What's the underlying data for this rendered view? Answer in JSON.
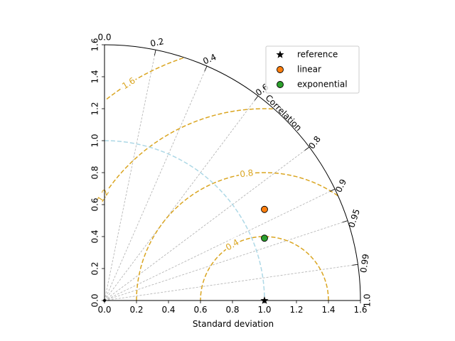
{
  "chart_data": {
    "type": "scatter",
    "chart_kind": "taylor-diagram",
    "xlabel": "Standard deviation",
    "ylabel": "",
    "corr_axis_label": "Correlation",
    "xlim": [
      0,
      1.6
    ],
    "ylim": [
      0,
      1.6
    ],
    "x_ticks": [
      "0.0",
      "0.2",
      "0.4",
      "0.6",
      "0.8",
      "1.0",
      "1.2",
      "1.4",
      "1.6"
    ],
    "y_ticks": [
      "0.0",
      "0.2",
      "0.4",
      "0.6",
      "0.8",
      "1.0",
      "1.2",
      "1.4",
      "1.6"
    ],
    "correlation_ticks": [
      0.0,
      0.2,
      0.4,
      0.6,
      0.8,
      0.9,
      0.95,
      0.99,
      1.0
    ],
    "correlation_tick_labels": [
      "0.0",
      "0.2",
      "0.4",
      "0.6",
      "0.8",
      "0.9",
      "0.95",
      "0.99",
      "1.0"
    ],
    "rmsd_contours": [
      0.4,
      0.8,
      1.2,
      1.6
    ],
    "rmsd_labeled": [
      {
        "text": "0.4",
        "value": 0.4
      },
      {
        "text": "0.8",
        "value": 0.8
      },
      {
        "text": "1.2",
        "value": 1.2
      },
      {
        "text": "1.6",
        "value": 1.6
      }
    ],
    "reference_std": 1.0,
    "legend_position": "top-right",
    "series": [
      {
        "name": "reference",
        "marker": "star",
        "color": "#000000",
        "x": 1.0,
        "y": 0.0
      },
      {
        "name": "linear",
        "marker": "circle",
        "color": "#ff7f0e",
        "x": 1.0,
        "y": 0.57
      },
      {
        "name": "exponential",
        "marker": "circle",
        "color": "#2ca02c",
        "x": 1.0,
        "y": 0.39
      }
    ],
    "colors": {
      "rmsd": "#daa520",
      "reference_arc": "#add8e6",
      "grid": "#b0b0b0",
      "outline": "#000000"
    }
  }
}
